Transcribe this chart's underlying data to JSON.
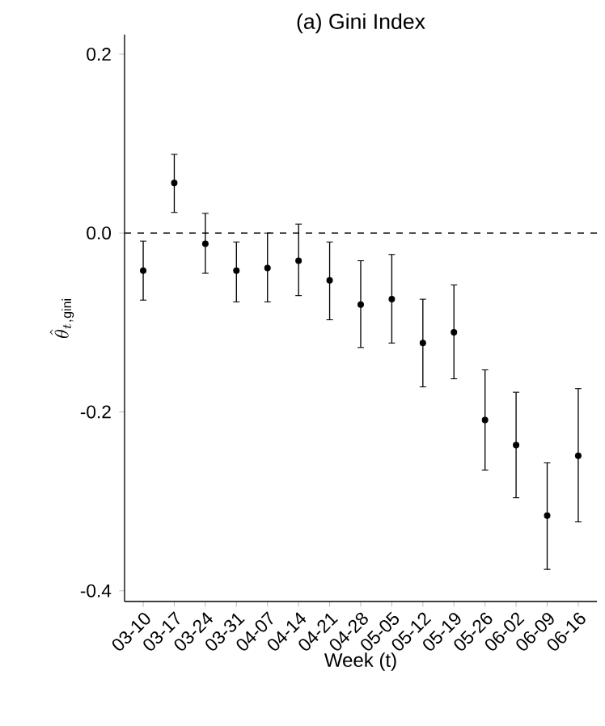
{
  "chart_data": {
    "type": "scatter",
    "title": "(a) Gini Index",
    "xlabel": "Week (t)",
    "ylabel": "\\hat{\\theta}_{t,\\mathrm{gini}}",
    "categories": [
      "03-10",
      "03-17",
      "03-24",
      "03-31",
      "04-07",
      "04-14",
      "04-21",
      "04-28",
      "05-05",
      "05-12",
      "05-19",
      "05-26",
      "06-02",
      "06-09",
      "06-16"
    ],
    "values": [
      -0.042,
      0.056,
      -0.012,
      -0.042,
      -0.039,
      -0.031,
      -0.053,
      -0.08,
      -0.074,
      -0.123,
      -0.111,
      -0.209,
      -0.237,
      -0.316,
      -0.249
    ],
    "errors": [
      [
        -0.075,
        -0.009
      ],
      [
        0.023,
        0.088
      ],
      [
        -0.045,
        0.022
      ],
      [
        -0.077,
        -0.01
      ],
      [
        -0.077,
        0.0
      ],
      [
        -0.07,
        0.01
      ],
      [
        -0.097,
        -0.01
      ],
      [
        -0.128,
        -0.031
      ],
      [
        -0.123,
        -0.024
      ],
      [
        -0.172,
        -0.074
      ],
      [
        -0.163,
        -0.058
      ],
      [
        -0.265,
        -0.153
      ],
      [
        -0.296,
        -0.178
      ],
      [
        -0.376,
        -0.257
      ],
      [
        -0.323,
        -0.174
      ]
    ],
    "color": "#000000",
    "marker": "circle",
    "ylim": [
      -0.412,
      0.222
    ],
    "yticks": [
      {
        "value": -0.4,
        "label": "-0.4"
      },
      {
        "value": -0.2,
        "label": "-0.2"
      },
      {
        "value": 0,
        "label": "0.0"
      },
      0.2
    ],
    "ref_lines": [
      {
        "axis": "y",
        "value": 0,
        "line_style": "dashed"
      }
    ],
    "grid": false,
    "legend": false
  }
}
